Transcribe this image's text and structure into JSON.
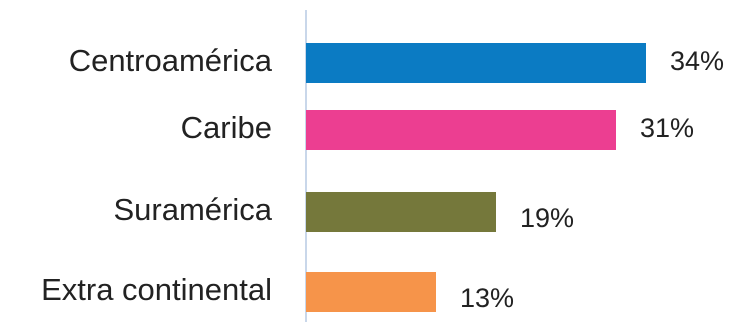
{
  "chart_data": {
    "type": "bar",
    "orientation": "horizontal",
    "categories": [
      "Centroamérica",
      "Caribe",
      "Suramérica",
      "Extra continental"
    ],
    "values": [
      34,
      31,
      19,
      13
    ],
    "value_labels": [
      "34%",
      "31%",
      "19%",
      "13%"
    ],
    "colors": [
      "#0b7bc3",
      "#ec3e91",
      "#75783b",
      "#f6944a"
    ],
    "title": "",
    "xlabel": "",
    "ylabel": "",
    "xlim": [
      0,
      40
    ],
    "grid": false,
    "legend": "none"
  }
}
